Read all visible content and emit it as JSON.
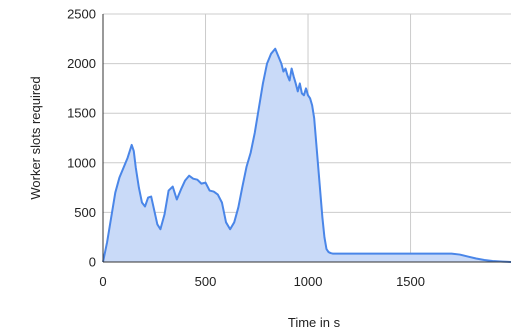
{
  "chart_data": {
    "type": "area",
    "title": "",
    "xlabel": "Time in s",
    "ylabel": "Worker slots required",
    "xlim": [
      0,
      1990
    ],
    "ylim": [
      0,
      2500
    ],
    "x_ticks": [
      0,
      500,
      1000,
      1500
    ],
    "y_ticks": [
      0,
      500,
      1000,
      1500,
      2000,
      2500
    ],
    "grid": true,
    "legend": "none",
    "colors": {
      "line": "#4a86e8",
      "fill": "#c9daf8",
      "grid": "#cccccc",
      "axis": "#333333"
    },
    "series": [
      {
        "x": [
          0,
          20,
          40,
          60,
          80,
          100,
          120,
          140,
          150,
          160,
          175,
          190,
          205,
          220,
          235,
          250,
          265,
          280,
          300,
          320,
          340,
          360,
          380,
          400,
          420,
          440,
          460,
          480,
          500,
          520,
          540,
          560,
          580,
          600,
          620,
          640,
          660,
          680,
          700,
          720,
          740,
          760,
          780,
          800,
          820,
          840,
          860,
          870,
          880,
          890,
          900,
          910,
          920,
          930,
          940,
          950,
          960,
          970,
          980,
          990,
          1000,
          1010,
          1020,
          1030,
          1040,
          1050,
          1060,
          1070,
          1080,
          1090,
          1100,
          1110,
          1120,
          1140,
          1200,
          1300,
          1400,
          1500,
          1600,
          1700,
          1740,
          1780,
          1820,
          1860,
          1900,
          1950,
          1990
        ],
        "y": [
          0,
          200,
          450,
          700,
          850,
          950,
          1050,
          1180,
          1120,
          950,
          750,
          600,
          560,
          650,
          660,
          520,
          380,
          330,
          480,
          720,
          760,
          630,
          730,
          820,
          870,
          840,
          830,
          790,
          800,
          720,
          710,
          680,
          600,
          400,
          330,
          400,
          550,
          760,
          960,
          1100,
          1300,
          1550,
          1800,
          2000,
          2100,
          2150,
          2050,
          2000,
          1920,
          1950,
          1880,
          1830,
          1950,
          1870,
          1800,
          1720,
          1800,
          1700,
          1680,
          1750,
          1680,
          1650,
          1580,
          1450,
          1200,
          950,
          700,
          450,
          250,
          130,
          100,
          90,
          85,
          85,
          85,
          85,
          85,
          85,
          85,
          85,
          75,
          55,
          35,
          20,
          10,
          4,
          0
        ]
      }
    ]
  }
}
